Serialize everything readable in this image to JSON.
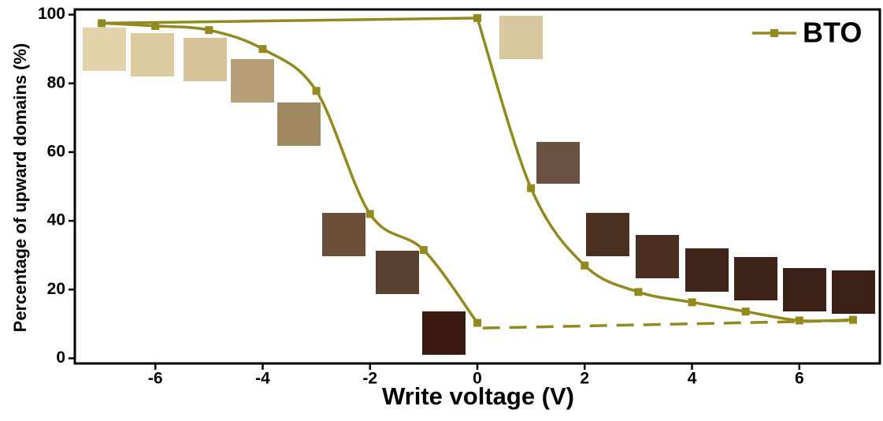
{
  "chart_data": {
    "type": "line",
    "xlabel": "Write voltage (V)",
    "ylabel": "Percentage of upward domains (%)",
    "xlim": [
      -7.5,
      7.5
    ],
    "ylim": [
      -1.5,
      101.5
    ],
    "xticks": [
      -6,
      -4,
      -2,
      0,
      2,
      4,
      6
    ],
    "yticks": [
      0,
      20,
      40,
      60,
      80,
      100
    ],
    "legend": "upper right",
    "series": [
      {
        "name": "BTO",
        "color": "#928a1e",
        "x": [
          -7,
          -6,
          -5,
          -4,
          -3,
          -2,
          -1,
          0
        ],
        "values": [
          97.5,
          96.7,
          95.5,
          90,
          77.8,
          42,
          31.5,
          10.3
        ]
      },
      {
        "color": "#928a1e",
        "x": [
          0,
          1,
          2,
          3,
          4,
          5,
          6,
          7
        ],
        "values": [
          99,
          49.5,
          27,
          19.3,
          16.3,
          13.6,
          11,
          11.2
        ]
      },
      {
        "color": "#928a1e",
        "x": [
          -7,
          0
        ],
        "values": [
          97.5,
          99
        ],
        "markers": false
      },
      {
        "color": "#928a1e",
        "x": [
          0.1,
          7
        ],
        "values": [
          8.8,
          11
        ],
        "markers": false,
        "dashed": true
      }
    ]
  }
}
